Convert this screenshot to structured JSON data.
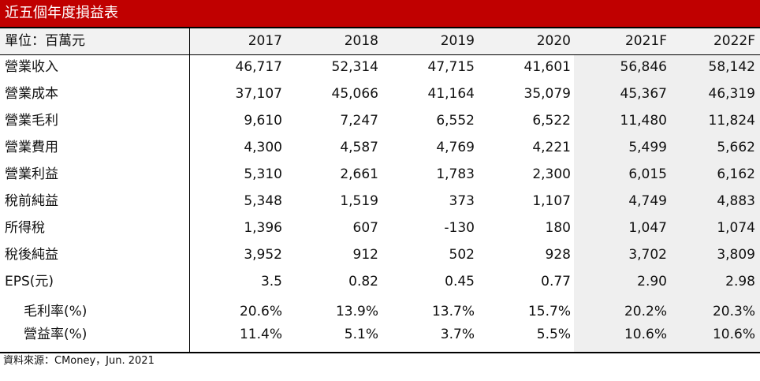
{
  "table": {
    "title": "近五個年度損益表",
    "unit_label": "單位：百萬元",
    "columns": [
      "2017",
      "2018",
      "2019",
      "2020",
      "2021F",
      "2022F"
    ],
    "rows": [
      {
        "label": "營業收入",
        "values": [
          "46,717",
          "52,314",
          "47,715",
          "41,601",
          "56,846",
          "58,142"
        ]
      },
      {
        "label": "營業成本",
        "values": [
          "37,107",
          "45,066",
          "41,164",
          "35,079",
          "45,367",
          "46,319"
        ]
      },
      {
        "label": "營業毛利",
        "values": [
          "9,610",
          "7,247",
          "6,552",
          "6,522",
          "11,480",
          "11,824"
        ]
      },
      {
        "label": "營業費用",
        "values": [
          "4,300",
          "4,587",
          "4,769",
          "4,221",
          "5,499",
          "5,662"
        ]
      },
      {
        "label": "營業利益",
        "values": [
          "5,310",
          "2,661",
          "1,783",
          "2,300",
          "6,015",
          "6,162"
        ]
      },
      {
        "label": "稅前純益",
        "values": [
          "5,348",
          "1,519",
          "373",
          "1,107",
          "4,749",
          "4,883"
        ]
      },
      {
        "label": "所得稅",
        "values": [
          "1,396",
          "607",
          "-130",
          "180",
          "1,047",
          "1,074"
        ]
      },
      {
        "label": "稅後純益",
        "values": [
          "3,952",
          "912",
          "502",
          "928",
          "3,702",
          "3,809"
        ]
      },
      {
        "label": "EPS(元)",
        "values": [
          "3.5",
          "0.82",
          "0.45",
          "0.77",
          "2.90",
          "2.98"
        ]
      },
      {
        "label": "毛利率(%)",
        "values": [
          "20.6%",
          "13.9%",
          "13.7%",
          "15.7%",
          "20.2%",
          "20.3%"
        ],
        "indent": true
      },
      {
        "label": "營益率(%)",
        "values": [
          "11.4%",
          "5.1%",
          "3.7%",
          "5.5%",
          "10.6%",
          "10.6%"
        ],
        "indent": true
      }
    ],
    "source": "資料來源：CMoney，Jun. 2021"
  }
}
